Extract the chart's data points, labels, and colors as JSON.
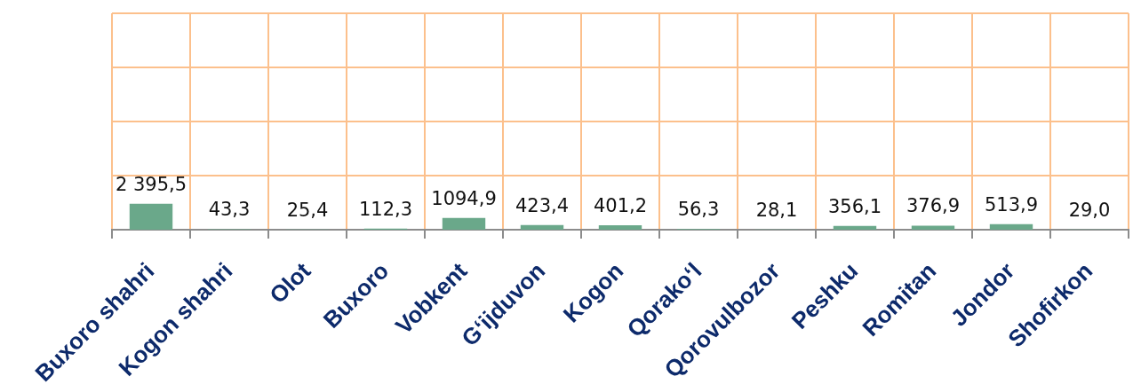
{
  "chart_data": {
    "type": "bar",
    "categories": [
      "Buxoro shahri",
      "Kogon shahri",
      "Olot",
      "Buxoro",
      "Vobkent",
      "G‘ijduvon",
      "Kogon",
      "Qorako‘l",
      "Qorovulbozor",
      "Peshku",
      "Romitan",
      "Jondor",
      "Shofirkon"
    ],
    "values": [
      2395.5,
      43.3,
      25.4,
      112.3,
      1094.9,
      423.4,
      401.2,
      56.3,
      28.1,
      356.1,
      376.9,
      513.9,
      29.0
    ],
    "value_labels": [
      "2 395,5",
      "43,3",
      "25,4",
      "112,3",
      "1094,9",
      "423,4",
      "401,2",
      "56,3",
      "28,1",
      "356,1",
      "376,9",
      "513,9",
      "29,0"
    ],
    "color": "#6aa88a",
    "ylim": [
      0,
      20000
    ],
    "yticks": [
      {
        "value": 0,
        "label": null
      },
      {
        "value": 5000,
        "label": null
      },
      {
        "value": 10000,
        "label": null
      },
      {
        "value": 15000,
        "label": null
      },
      {
        "value": 20000,
        "label": null
      }
    ],
    "grid": true,
    "tick_labels": "x"
  }
}
